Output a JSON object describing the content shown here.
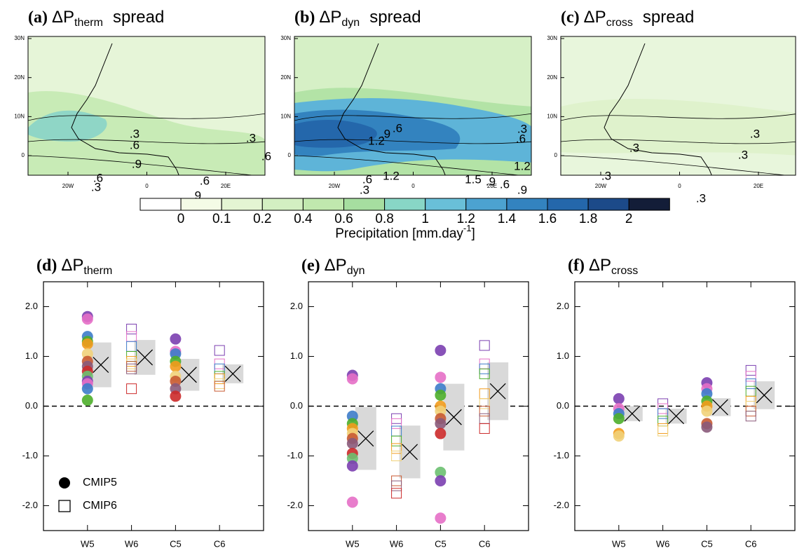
{
  "maps": {
    "panels": [
      {
        "label": "(a)",
        "symbol": "ΔP",
        "subscript": "therm",
        "suffix": "spread",
        "contour_labels": [
          ".3",
          ".6",
          ".9",
          ".6",
          ".3",
          ".6",
          ".9",
          ".3",
          ".6"
        ]
      },
      {
        "label": "(b)",
        "symbol": "ΔP",
        "subscript": "dyn",
        "suffix": "spread",
        "contour_labels": [
          ".3",
          ".6",
          "1.2",
          "1.5",
          ".9",
          ".6",
          ".9",
          "1.2",
          ".3",
          ".6",
          "1.2",
          ".9",
          ".6"
        ]
      },
      {
        "label": "(c)",
        "symbol": "ΔP",
        "subscript": "cross",
        "suffix": "spread",
        "contour_labels": [
          ".3",
          ".3",
          ".3",
          ".3",
          ".3"
        ]
      }
    ],
    "lat_ticks": [
      "30N",
      "20N",
      "10N",
      "0"
    ],
    "lon_ticks": [
      "20W",
      "0",
      "20E"
    ]
  },
  "colorbar": {
    "levels": [
      0,
      0.1,
      0.2,
      0.4,
      0.6,
      0.8,
      1,
      1.2,
      1.4,
      1.6,
      1.8,
      2
    ],
    "colors": [
      "#ffffff",
      "#f4fbe6",
      "#e4f5d3",
      "#d3efc2",
      "#c0e8ae",
      "#a6dea0",
      "#88d6c6",
      "#69bfd8",
      "#4ca2d0",
      "#3383bf",
      "#2467ab",
      "#1c4a89",
      "#131d38"
    ],
    "label": "Precipitation [mm.day",
    "label_superscript": "-1",
    "label_end": "]"
  },
  "chart_data": [
    {
      "type": "scatter",
      "label": "(d)",
      "symbol": "ΔP",
      "subscript": "therm",
      "categories": [
        "W5",
        "W6",
        "C5",
        "C6"
      ],
      "ylim": [
        -2.5,
        2.5
      ],
      "yticks": [
        {
          "value": 2,
          "label": "2.0"
        },
        {
          "value": 1,
          "label": "1.0"
        },
        {
          "value": 0,
          "label": "0.0"
        },
        {
          "value": -1,
          "label": "-1.0"
        },
        {
          "value": -2,
          "label": "-2.0"
        }
      ],
      "palette": [
        "#7b3fb0",
        "#e56fc6",
        "#3d7cc9",
        "#4cae2a",
        "#f29b1c",
        "#f1d27a",
        "#c85a32",
        "#8a5a7a",
        "#cc2a2a",
        "#6cc070"
      ],
      "legend": "lower left",
      "series": [
        {
          "name": "CMIP5",
          "marker": "circle",
          "values": [
            [
              1.8,
              1.75,
              1.4,
              1.3,
              1.25,
              1.05,
              0.9,
              0.8,
              0.7,
              0.6,
              0.5,
              0.45,
              0.35,
              0.12
            ],
            [],
            [
              1.35,
              1.1,
              1.05,
              0.9,
              0.8,
              0.6,
              0.5,
              0.35,
              0.2
            ],
            []
          ]
        },
        {
          "name": "CMIP6",
          "marker": "square",
          "values": [
            [],
            [
              1.55,
              1.4,
              1.2,
              1.0,
              0.9,
              0.85,
              0.8,
              0.75,
              0.35
            ],
            [],
            [
              1.12,
              0.85,
              0.75,
              0.6,
              0.55,
              0.45,
              0.4
            ]
          ]
        }
      ],
      "means": [
        0.83,
        0.98,
        0.63,
        0.65
      ],
      "spreads": [
        0.45,
        0.35,
        0.32,
        0.19
      ]
    },
    {
      "type": "scatter",
      "label": "(e)",
      "symbol": "ΔP",
      "subscript": "dyn",
      "categories": [
        "W5",
        "W6",
        "C5",
        "C6"
      ],
      "ylim": [
        -2.5,
        2.5
      ],
      "yticks": [
        {
          "value": 2,
          "label": "2.0"
        },
        {
          "value": 1,
          "label": "1.0"
        },
        {
          "value": 0,
          "label": "0.0"
        },
        {
          "value": -1,
          "label": "-1.0"
        },
        {
          "value": -2,
          "label": "-2.0"
        }
      ],
      "palette": [
        "#7b3fb0",
        "#e56fc6",
        "#3d7cc9",
        "#4cae2a",
        "#f29b1c",
        "#f1d27a",
        "#c85a32",
        "#8a5a7a",
        "#cc2a2a",
        "#6cc070"
      ],
      "series": [
        {
          "marker": "circle",
          "values": [
            [
              0.62,
              0.55,
              -0.2,
              -0.35,
              -0.45,
              -0.55,
              -0.65,
              -0.75,
              -0.95,
              -1.05,
              -1.2,
              -1.93
            ],
            [],
            [
              1.12,
              0.58,
              0.35,
              0.22,
              0.0,
              -0.1,
              -0.25,
              -0.35,
              -0.55,
              -1.33,
              -1.5,
              -2.25
            ],
            []
          ]
        },
        {
          "marker": "square",
          "values": [
            [],
            [
              -0.25,
              -0.35,
              -0.5,
              -0.7,
              -0.85,
              -1.0,
              -1.5,
              -1.6,
              -1.75
            ],
            [],
            [
              1.22,
              0.85,
              0.75,
              0.65,
              0.25,
              0.05,
              -0.1,
              -0.25,
              -0.45
            ]
          ]
        }
      ],
      "means": [
        -0.65,
        -0.92,
        -0.22,
        0.3
      ],
      "spreads": [
        0.63,
        0.53,
        0.67,
        0.58
      ]
    },
    {
      "type": "scatter",
      "label": "(f)",
      "symbol": "ΔP",
      "subscript": "cross",
      "categories": [
        "W5",
        "W6",
        "C5",
        "C6"
      ],
      "ylim": [
        -2.5,
        2.5
      ],
      "yticks": [
        {
          "value": 2,
          "label": "2.0"
        },
        {
          "value": 1,
          "label": "1.0"
        },
        {
          "value": 0,
          "label": "0.0"
        },
        {
          "value": -1,
          "label": "-1.0"
        },
        {
          "value": -2,
          "label": "-2.0"
        }
      ],
      "palette": [
        "#7b3fb0",
        "#e56fc6",
        "#3d7cc9",
        "#4cae2a",
        "#f29b1c",
        "#f1d27a",
        "#c85a32",
        "#8a5a7a",
        "#cc2a2a",
        "#6cc070"
      ],
      "series": [
        {
          "marker": "circle",
          "values": [
            [
              0.15,
              -0.05,
              -0.15,
              -0.25,
              -0.55,
              -0.6
            ],
            [],
            [
              0.47,
              0.35,
              0.25,
              0.1,
              0.0,
              -0.1,
              -0.35,
              -0.42
            ],
            []
          ]
        },
        {
          "marker": "square",
          "values": [
            [],
            [
              0.05,
              -0.05,
              -0.15,
              -0.3,
              -0.45,
              -0.5
            ],
            [],
            [
              0.72,
              0.6,
              0.45,
              0.3,
              0.1,
              0.0,
              -0.1,
              -0.2
            ]
          ]
        }
      ],
      "means": [
        -0.15,
        -0.2,
        -0.02,
        0.22
      ],
      "spreads": [
        0.15,
        0.15,
        0.18,
        0.28
      ]
    }
  ]
}
